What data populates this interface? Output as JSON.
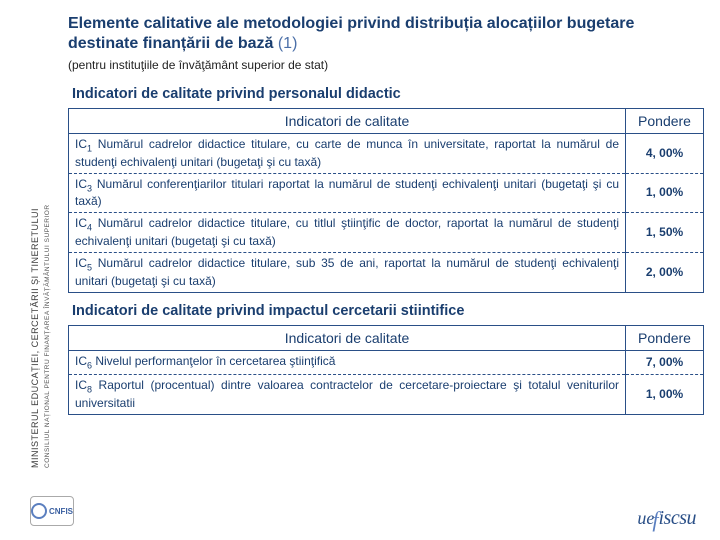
{
  "title": "Elemente calitative ale metodologiei privind distribuția alocațiilor bugetare destinate finanțării de bază",
  "title_num": "(1)",
  "subtitle": "(pentru instituţiile de învăţământ superior de stat)",
  "sidebar": {
    "main": "MINISTERUL EDUCAȚIEI, CERCETĂRII ȘI TINERETULUI",
    "sub": "CONSILIUL NAȚIONAL PENTRU FINANȚAREA ÎNVĂȚĂMÂNTULUI SUPERIOR"
  },
  "section1": {
    "heading": "Indicatori de calitate privind personalul didactic",
    "header_indicator": "Indicatori de calitate",
    "header_weight": "Pondere",
    "rows": [
      {
        "code": "IC",
        "sub": "1",
        "text": " Numărul cadrelor didactice titulare, cu carte de munca în universitate, raportat la numărul de studenţi echivalenţi unitari (bugetaţi şi cu taxă)",
        "weight": "4, 00%"
      },
      {
        "code": "IC",
        "sub": "3",
        "text": " Numărul conferenţiarilor titulari raportat la numărul de studenţi echivalenţi unitari (bugetaţi şi cu taxă)",
        "weight": "1, 00%"
      },
      {
        "code": "IC",
        "sub": "4",
        "text": " Numărul cadrelor didactice titulare, cu titlul ştiinţific de doctor, raportat la numărul de studenţi echivalenţi unitari (bugetaţi şi cu taxă)",
        "weight": "1, 50%"
      },
      {
        "code": "IC",
        "sub": "5",
        "text": " Numărul cadrelor didactice titulare, sub 35 de ani, raportat la numărul de studenţi echivalenţi unitari (bugetaţi şi cu taxă)",
        "weight": "2, 00%"
      }
    ]
  },
  "section2": {
    "heading": "Indicatori de calitate privind impactul cercetarii stiintifice",
    "header_indicator": "Indicatori de calitate",
    "header_weight": "Pondere",
    "rows": [
      {
        "code": "IC",
        "sub": "6",
        "text": " Nivelul performanţelor în cercetarea ştiinţifică",
        "weight": "7, 00%"
      },
      {
        "code": "IC",
        "sub": "8",
        "text": " Raportul (procentual) dintre valoarea contractelor de cercetare-proiectare şi totalul veniturilor universitatii",
        "weight": "1, 00%"
      }
    ]
  },
  "footer": {
    "left_label": "CNFIS",
    "right_ue": "ue",
    "right_iscsu": "iscsu"
  }
}
